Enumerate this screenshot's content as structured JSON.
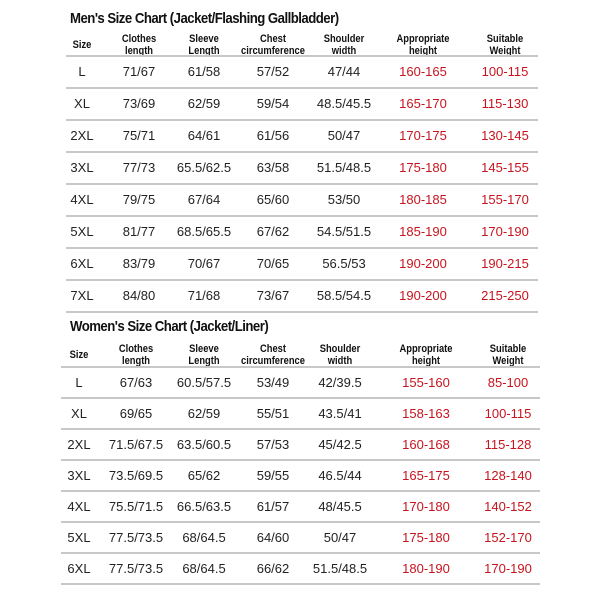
{
  "men": {
    "title": "Men's Size Chart (Jacket/Flashing Gallbladder)",
    "headers": [
      "Size",
      "Clothes\nlength",
      "Sleeve\nLength",
      "Chest\ncircumference",
      "Shoulder\nwidth",
      "Appropriate\nheight",
      "Suitable\nWeight"
    ],
    "rows": [
      [
        "L",
        "71/67",
        "61/58",
        "57/52",
        "47/44",
        "160-165",
        "100-115"
      ],
      [
        "XL",
        "73/69",
        "62/59",
        "59/54",
        "48.5/45.5",
        "165-170",
        "115-130"
      ],
      [
        "2XL",
        "75/71",
        "64/61",
        "61/56",
        "50/47",
        "170-175",
        "130-145"
      ],
      [
        "3XL",
        "77/73",
        "65.5/62.5",
        "63/58",
        "51.5/48.5",
        "175-180",
        "145-155"
      ],
      [
        "4XL",
        "79/75",
        "67/64",
        "65/60",
        "53/50",
        "180-185",
        "155-170"
      ],
      [
        "5XL",
        "81/77",
        "68.5/65.5",
        "67/62",
        "54.5/51.5",
        "185-190",
        "170-190"
      ],
      [
        "6XL",
        "83/79",
        "70/67",
        "70/65",
        "56.5/53",
        "190-200",
        "190-215"
      ],
      [
        "7XL",
        "84/80",
        "71/68",
        "73/67",
        "58.5/54.5",
        "190-200",
        "215-250"
      ]
    ]
  },
  "women": {
    "title": "Women's Size Chart (Jacket/Liner)",
    "headers": [
      "Size",
      "Clothes\nlength",
      "Sleeve\nLength",
      "Chest\ncircumference",
      "Shoulder\nwidth",
      "Appropriate\nheight",
      "Suitable\nWeight"
    ],
    "rows": [
      [
        "L",
        "67/63",
        "60.5/57.5",
        "53/49",
        "42/39.5",
        "155-160",
        "85-100"
      ],
      [
        "XL",
        "69/65",
        "62/59",
        "55/51",
        "43.5/41",
        "158-163",
        "100-115"
      ],
      [
        "2XL",
        "71.5/67.5",
        "63.5/60.5",
        "57/53",
        "45/42.5",
        "160-168",
        "115-128"
      ],
      [
        "3XL",
        "73.5/69.5",
        "65/62",
        "59/55",
        "46.5/44",
        "165-175",
        "128-140"
      ],
      [
        "4XL",
        "75.5/71.5",
        "66.5/63.5",
        "61/57",
        "48/45.5",
        "170-180",
        "140-152"
      ],
      [
        "5XL",
        "77.5/73.5",
        "68/64.5",
        "64/60",
        "50/47",
        "175-180",
        "152-170"
      ],
      [
        "6XL",
        "77.5/73.5",
        "68/64.5",
        "66/62",
        "51.5/48.5",
        "180-190",
        "170-190"
      ]
    ]
  },
  "colors": {
    "text": "#222222",
    "highlight": "#c8141e",
    "divider": "#c8c8c8"
  }
}
